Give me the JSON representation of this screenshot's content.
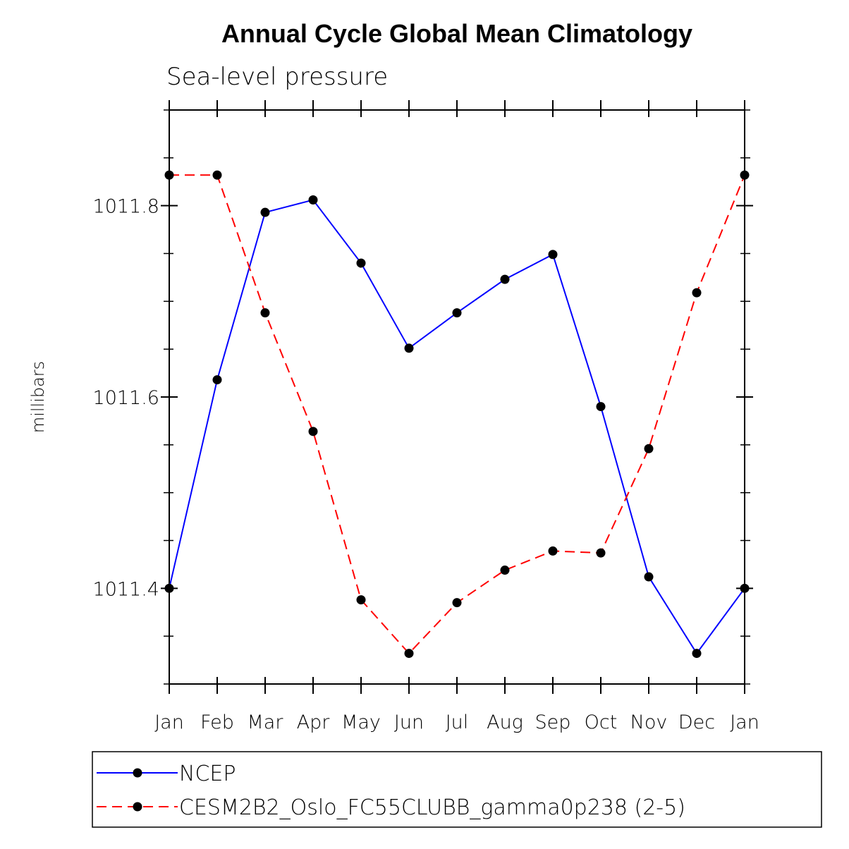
{
  "chart_data": {
    "type": "line",
    "title": "Annual Cycle Global Mean Climatology",
    "subtitle": "Sea-level pressure",
    "xlabel": "",
    "ylabel": "millibars",
    "categories": [
      "Jan",
      "Feb",
      "Mar",
      "Apr",
      "May",
      "Jun",
      "Jul",
      "Aug",
      "Sep",
      "Oct",
      "Nov",
      "Dec",
      "Jan"
    ],
    "ylim": [
      1011.3,
      1011.9
    ],
    "yticks": [
      1011.4,
      1011.6,
      1011.8
    ],
    "ytick_labels": [
      "1011.4",
      "1011.6",
      "1011.8"
    ],
    "yminor_step": 0.05,
    "grid": false,
    "legend_position": "bottom",
    "series": [
      {
        "name": "NCEP",
        "color": "#0000ff",
        "dash": "solid",
        "values": [
          1011.4,
          1011.618,
          1011.793,
          1011.806,
          1011.74,
          1011.651,
          1011.688,
          1011.723,
          1011.749,
          1011.59,
          1011.412,
          1011.332,
          1011.4
        ]
      },
      {
        "name": "CESM2B2_Oslo_FC55CLUBB_gamma0p238 (2-5)",
        "color": "#ff0000",
        "dash": "dashed",
        "values": [
          1011.832,
          1011.832,
          1011.688,
          1011.564,
          1011.388,
          1011.332,
          1011.385,
          1011.419,
          1011.439,
          1011.437,
          1011.546,
          1011.709,
          1011.832
        ]
      }
    ]
  }
}
